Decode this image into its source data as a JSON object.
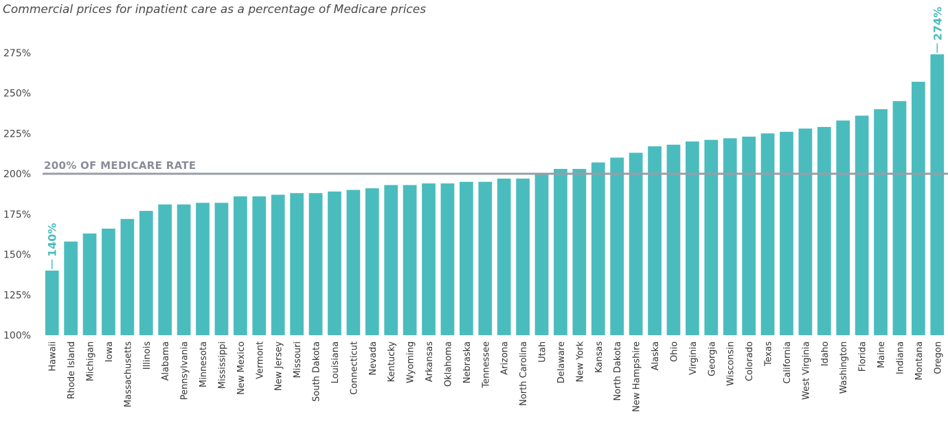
{
  "chart_data": {
    "type": "bar",
    "title": "Commercial prices for inpatient care as a percentage of Medicare prices",
    "xlabel": "",
    "ylabel": "",
    "ylim": [
      100,
      290
    ],
    "yticks": [
      100,
      125,
      150,
      175,
      200,
      225,
      250,
      275
    ],
    "ytick_labels": [
      "100%",
      "125%",
      "150%",
      "175%",
      "200%",
      "225%",
      "250%",
      "275%"
    ],
    "grid": false,
    "bar_color": "#4bbcbd",
    "reference_line": {
      "value": 200,
      "label": "200% OF MEDICARE RATE",
      "color": "#9a9ca6"
    },
    "annotations": [
      {
        "category": "Hawaii",
        "text": "140%"
      },
      {
        "category": "Oregon",
        "text": "274%"
      }
    ],
    "categories": [
      "Hawaii",
      "Rhode Island",
      "Michigan",
      "Iowa",
      "Massachusetts",
      "Illinois",
      "Alabama",
      "Pennsylvania",
      "Minnesota",
      "Mississippi",
      "New Mexico",
      "Vermont",
      "New Jersey",
      "Missouri",
      "South Dakota",
      "Louisiana",
      "Connecticut",
      "Nevada",
      "Kentucky",
      "Wyoming",
      "Arkansas",
      "Oklahoma",
      "Nebraska",
      "Tennessee",
      "Arizona",
      "North Carolina",
      "Utah",
      "Delaware",
      "New York",
      "Kansas",
      "North Dakota",
      "New Hampshire",
      "Alaska",
      "Ohio",
      "Virginia",
      "Georgia",
      "Wisconsin",
      "Colorado",
      "Texas",
      "California",
      "West Virginia",
      "Idaho",
      "Washington",
      "Florida",
      "Maine",
      "Indiana",
      "Montana",
      "Oregon"
    ],
    "values": [
      140,
      158,
      163,
      166,
      172,
      177,
      181,
      181,
      182,
      182,
      186,
      186,
      187,
      188,
      188,
      189,
      190,
      191,
      193,
      193,
      194,
      194,
      195,
      195,
      197,
      197,
      200,
      203,
      203,
      207,
      210,
      213,
      217,
      218,
      220,
      221,
      222,
      223,
      225,
      226,
      228,
      229,
      233,
      236,
      240,
      245,
      257,
      274
    ]
  }
}
